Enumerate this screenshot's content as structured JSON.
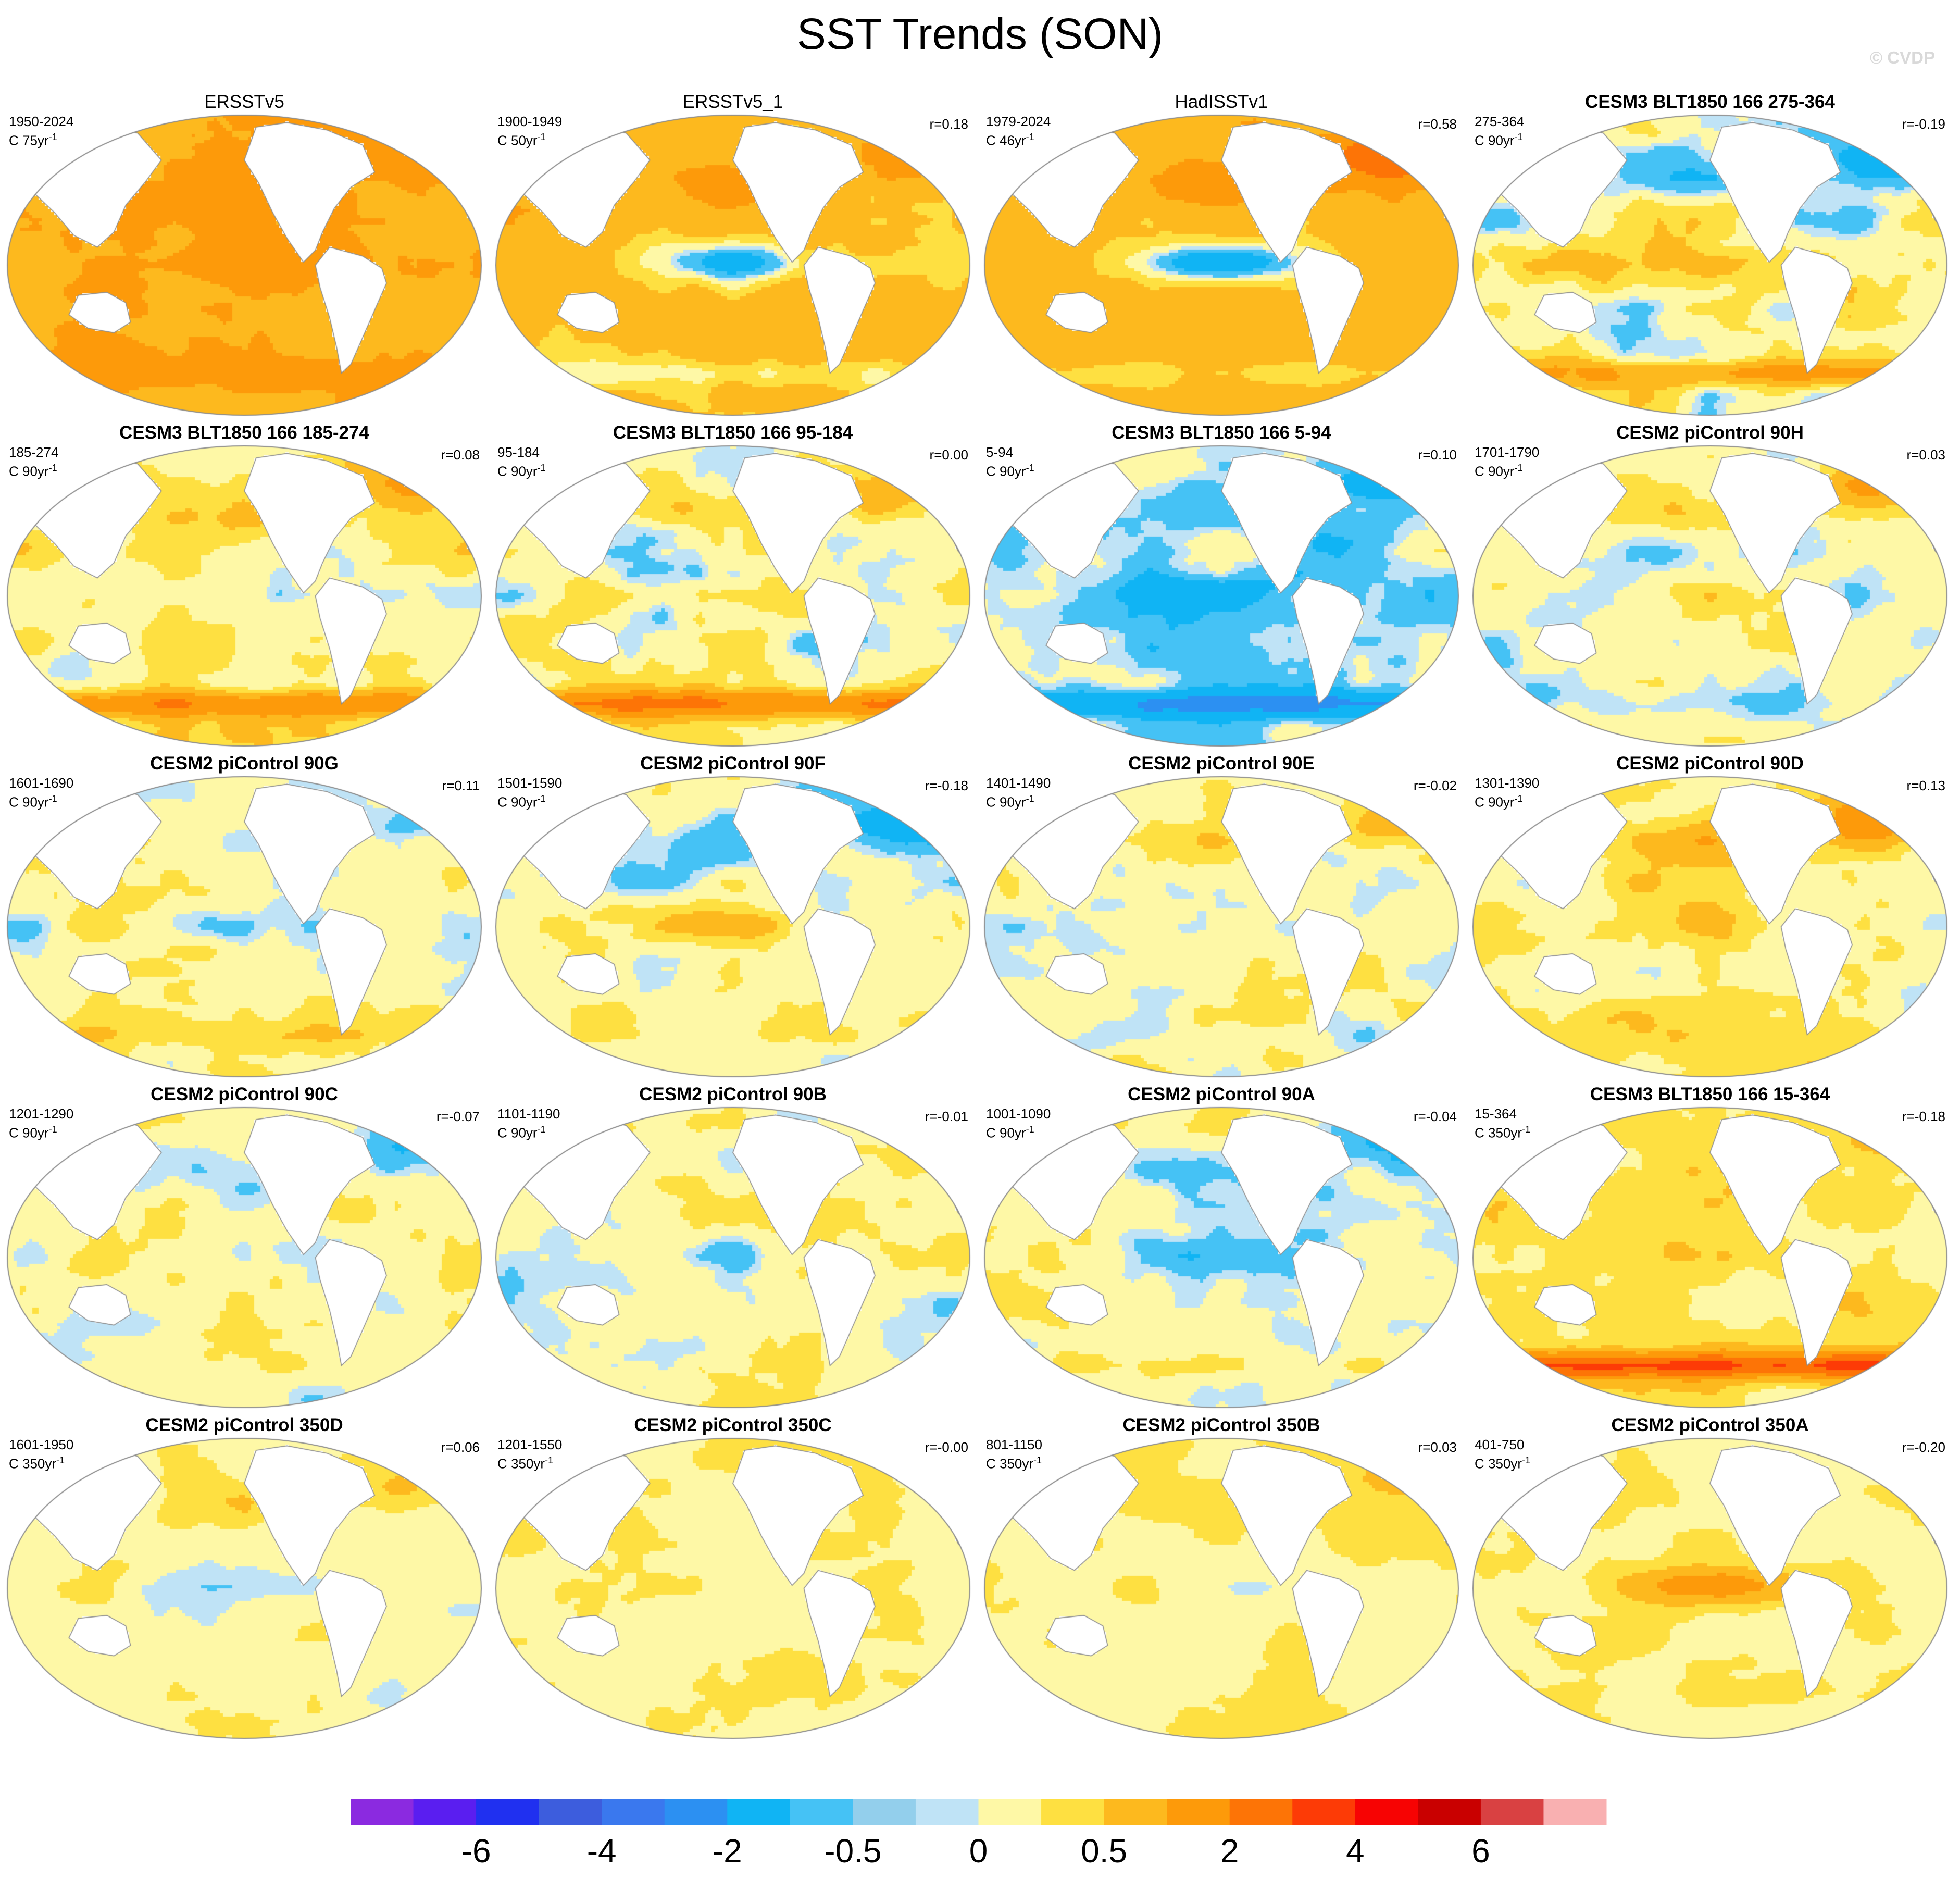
{
  "figure": {
    "title": "SST Trends (SON)",
    "copyright": "© CVDP"
  },
  "palette": {
    "land": "#ffffff",
    "coast": "#8c8c8c",
    "border": "#8c8c8c",
    "levels": [
      "#8b2ae0",
      "#5a1ef0",
      "#2030f0",
      "#3d5ddd",
      "#3a78ee",
      "#2c90f2",
      "#10b4f4",
      "#45c2f5",
      "#93cfec",
      "#bfe3f6",
      "#fef8a6",
      "#fee041",
      "#fdb91e",
      "#fd9a0a",
      "#fd7406",
      "#fd3b06",
      "#f70303",
      "#c90000",
      "#d94142",
      "#f9b0b1"
    ]
  },
  "colorbar": {
    "tick_labels": [
      "-6",
      "-4",
      "-2",
      "-0.5",
      "0",
      "0.5",
      "2",
      "4",
      "6"
    ]
  },
  "panels": [
    {
      "name": "ERSSTv5",
      "years": "1950-2024",
      "rate": "C 75yr",
      "corr": "",
      "plain": true,
      "pattern": {
        "warm": 2.6,
        "enso": 0.3,
        "ap": 0.3,
        "so": 0.2,
        "noise": 0.3,
        "seed": 1
      }
    },
    {
      "name": "ERSSTv5_1",
      "years": "1900-1949",
      "rate": "C 50yr",
      "corr": "r=0.18",
      "plain": true,
      "pattern": {
        "warm": 1.7,
        "enso": -0.9,
        "ap": 0.4,
        "so": -0.4,
        "noise": 0.6,
        "seed": 2
      }
    },
    {
      "name": "HadISSTv1",
      "years": "1979-2024",
      "rate": "C 46yr",
      "corr": "r=0.58",
      "plain": true,
      "pattern": {
        "warm": 2.0,
        "enso": -1.3,
        "ap": 1.0,
        "so": -0.3,
        "noise": 0.4,
        "seed": 3
      }
    },
    {
      "name": "CESM3 BLT1850 166 275-364",
      "years": "275-364",
      "rate": "C 90yr",
      "corr": "r=-0.19",
      "plain": false,
      "pattern": {
        "warm": 0.1,
        "enso": 0.3,
        "ap": -0.6,
        "so": 0.9,
        "noise": 0.8,
        "seed": 4
      }
    },
    {
      "name": "CESM3 BLT1850 166 185-274",
      "years": "185-274",
      "rate": "C 90yr",
      "corr": "r=0.08",
      "plain": false,
      "pattern": {
        "warm": 0.4,
        "enso": -0.3,
        "ap": 0.6,
        "so": 1.2,
        "noise": 0.7,
        "seed": 5
      }
    },
    {
      "name": "CESM3 BLT1850 166 95-184",
      "years": "95-184",
      "rate": "C 90yr",
      "corr": "r=0.00",
      "plain": false,
      "pattern": {
        "warm": 0.1,
        "enso": 0.2,
        "ap": 0.3,
        "so": 1.4,
        "noise": 0.8,
        "seed": 6
      }
    },
    {
      "name": "CESM3 BLT1850 166 5-94",
      "years": "5-94",
      "rate": "C 90yr",
      "corr": "r=0.10",
      "plain": false,
      "pattern": {
        "warm": -0.8,
        "enso": -0.6,
        "ap": -0.4,
        "so": -1.0,
        "noise": 0.7,
        "seed": 7
      }
    },
    {
      "name": "CESM2 piControl 90H",
      "years": "1701-1790",
      "rate": "C 90yr",
      "corr": "r=0.03",
      "plain": false,
      "pattern": {
        "warm": -0.1,
        "enso": 0.2,
        "ap": 0.8,
        "so": -0.2,
        "noise": 0.6,
        "seed": 8
      }
    },
    {
      "name": "CESM2 piControl 90G",
      "years": "1601-1690",
      "rate": "C 90yr",
      "corr": "r=0.11",
      "plain": false,
      "pattern": {
        "warm": 0.0,
        "enso": -0.2,
        "ap": -0.3,
        "so": 0.2,
        "noise": 0.6,
        "seed": 9
      }
    },
    {
      "name": "CESM2 piControl 90F",
      "years": "1501-1590",
      "rate": "C 90yr",
      "corr": "r=-0.18",
      "plain": false,
      "pattern": {
        "warm": -0.1,
        "enso": 0.4,
        "ap": -0.6,
        "so": 0.1,
        "noise": 0.6,
        "seed": 10
      }
    },
    {
      "name": "CESM2 piControl 90E",
      "years": "1401-1490",
      "rate": "C 90yr",
      "corr": "r=-0.02",
      "plain": false,
      "pattern": {
        "warm": 0.0,
        "enso": 0.0,
        "ap": 0.6,
        "so": -0.1,
        "noise": 0.6,
        "seed": 11
      }
    },
    {
      "name": "CESM2 piControl 90D",
      "years": "1301-1390",
      "rate": "C 90yr",
      "corr": "r=0.13",
      "plain": false,
      "pattern": {
        "warm": 0.4,
        "enso": 0.2,
        "ap": 0.9,
        "so": 0.1,
        "noise": 0.6,
        "seed": 12
      }
    },
    {
      "name": "CESM2 piControl 90C",
      "years": "1201-1290",
      "rate": "C 90yr",
      "corr": "r=-0.07",
      "plain": false,
      "pattern": {
        "warm": 0.0,
        "enso": -0.2,
        "ap": -0.4,
        "so": 0.0,
        "noise": 0.6,
        "seed": 13
      }
    },
    {
      "name": "CESM2 piControl 90B",
      "years": "1101-1190",
      "rate": "C 90yr",
      "corr": "r=-0.01",
      "plain": false,
      "pattern": {
        "warm": 0.0,
        "enso": -0.3,
        "ap": 0.3,
        "so": 0.0,
        "noise": 0.6,
        "seed": 14
      }
    },
    {
      "name": "CESM2 piControl 90A",
      "years": "1001-1090",
      "rate": "C 90yr",
      "corr": "r=-0.04",
      "plain": false,
      "pattern": {
        "warm": -0.1,
        "enso": -0.3,
        "ap": -0.4,
        "so": 0.2,
        "noise": 0.6,
        "seed": 15
      }
    },
    {
      "name": "CESM3 BLT1850 166 15-364",
      "years": "15-364",
      "rate": "C 350yr",
      "corr": "r=-0.18",
      "plain": false,
      "pattern": {
        "warm": 0.7,
        "enso": 0.2,
        "ap": 0.2,
        "so": 1.8,
        "noise": 0.5,
        "seed": 16
      }
    },
    {
      "name": "CESM2 piControl 350D",
      "years": "1601-1950",
      "rate": "C 350yr",
      "corr": "r=0.06",
      "plain": false,
      "pattern": {
        "warm": 0.1,
        "enso": -0.2,
        "ap": 0.4,
        "so": 0.0,
        "noise": 0.4,
        "seed": 17
      }
    },
    {
      "name": "CESM2 piControl 350C",
      "years": "1201-1550",
      "rate": "C 350yr",
      "corr": "r=-0.00",
      "plain": false,
      "pattern": {
        "warm": 0.3,
        "enso": 0.0,
        "ap": 0.0,
        "so": 0.0,
        "noise": 0.3,
        "seed": 18
      }
    },
    {
      "name": "CESM2 piControl 350B",
      "years": "801-1150",
      "rate": "C 350yr",
      "corr": "r=0.03",
      "plain": false,
      "pattern": {
        "warm": 0.3,
        "enso": -0.1,
        "ap": 0.3,
        "so": 0.0,
        "noise": 0.3,
        "seed": 19
      }
    },
    {
      "name": "CESM2 piControl 350A",
      "years": "401-750",
      "rate": "C 350yr",
      "corr": "r=-0.20",
      "plain": false,
      "pattern": {
        "warm": 0.3,
        "enso": 0.8,
        "ap": 0.0,
        "so": 0.1,
        "noise": 0.3,
        "seed": 20
      }
    }
  ]
}
